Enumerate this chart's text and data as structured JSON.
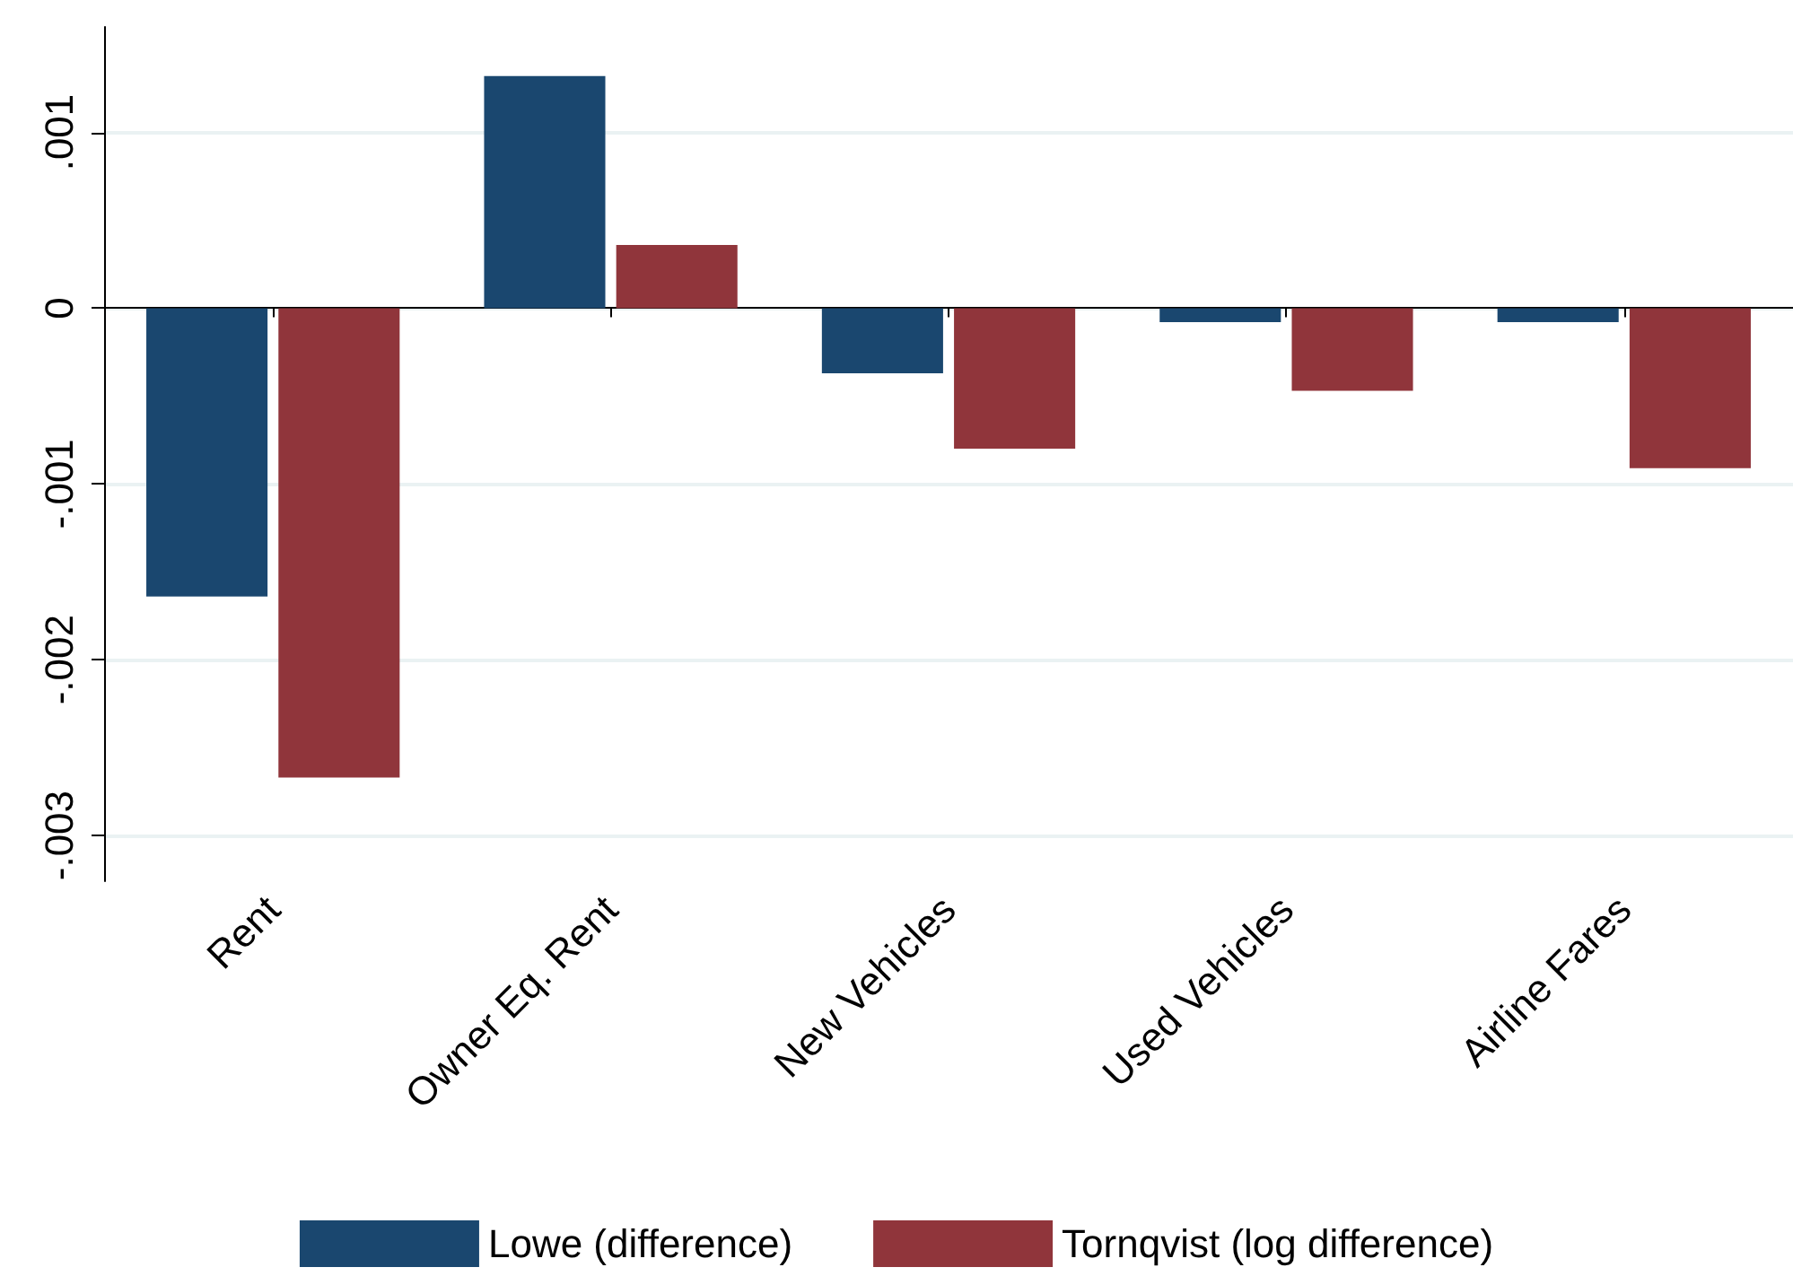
{
  "chart_data": {
    "type": "bar",
    "categories": [
      "Rent",
      "Owner Eq. Rent",
      "New Vehicles",
      "Used Vehicles",
      "Airline Fares"
    ],
    "series": [
      {
        "name": "Lowe (difference)",
        "color": "#1a476f",
        "values": [
          -0.00164,
          0.00132,
          -0.00037,
          -8e-05,
          -8e-05
        ]
      },
      {
        "name": "Tornqvist (log difference)",
        "color": "#90353b",
        "values": [
          -0.00267,
          0.00036,
          -0.0008,
          -0.00047,
          -0.00091
        ]
      }
    ],
    "ylim": [
      -0.00326,
      0.0016
    ],
    "yticks": [
      {
        "value": -0.003,
        "label": "-.003"
      },
      {
        "value": -0.002,
        "label": "-.002"
      },
      {
        "value": -0.001,
        "label": "-.001"
      },
      0,
      {
        "value": 0.001,
        "label": ".001"
      }
    ],
    "grid": "y",
    "legend": "bottom"
  }
}
